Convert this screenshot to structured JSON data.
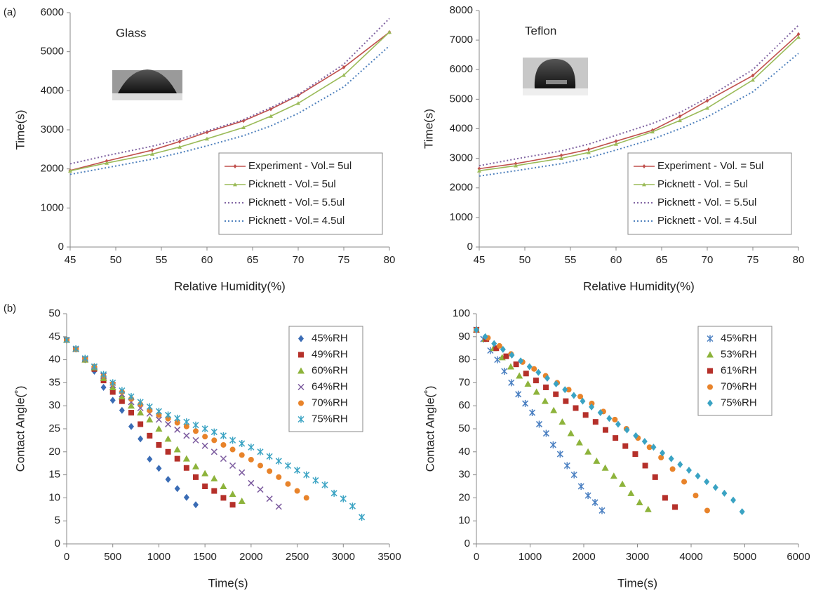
{
  "chart_data": [
    {
      "type": "line",
      "panel_label": "(a)",
      "title": "Glass",
      "x_label": "Relative Humidity(%)",
      "y_label": "Time(s)",
      "xlim": [
        45,
        80
      ],
      "xticks": [
        45,
        50,
        55,
        60,
        65,
        70,
        75,
        80
      ],
      "ylim": [
        0,
        6000
      ],
      "yticks": [
        0,
        1000,
        2000,
        3000,
        4000,
        5000,
        6000
      ],
      "legend": "lower right",
      "series": [
        {
          "name": "Experiment - Vol.= 5ul",
          "color": "#c0504d",
          "style": "solid",
          "marker": "diamond",
          "x": [
            45,
            49,
            54,
            57,
            60,
            64,
            67,
            70,
            75,
            80
          ],
          "values": [
            1960,
            2200,
            2480,
            2700,
            2940,
            3230,
            3530,
            3880,
            4600,
            5500
          ]
        },
        {
          "name": "Picknett - Vol.= 5ul",
          "color": "#9bbb59",
          "style": "solid",
          "marker": "triangle",
          "x": [
            45,
            49,
            54,
            57,
            60,
            64,
            67,
            70,
            75,
            80
          ],
          "values": [
            1950,
            2150,
            2380,
            2560,
            2770,
            3060,
            3350,
            3680,
            4400,
            5500
          ]
        },
        {
          "name": "Picknett - Vol.= 5.5ul",
          "color": "#8064a2",
          "style": "dotted",
          "marker": "none",
          "x": [
            45,
            49,
            54,
            57,
            60,
            64,
            67,
            70,
            75,
            80
          ],
          "values": [
            2130,
            2340,
            2580,
            2760,
            2970,
            3260,
            3570,
            3900,
            4680,
            5850
          ]
        },
        {
          "name": "Picknett - Vol.= 4.5ul",
          "color": "#4f81bd",
          "style": "dotted",
          "marker": "none",
          "x": [
            45,
            49,
            54,
            57,
            60,
            64,
            67,
            70,
            75,
            80
          ],
          "values": [
            1860,
            2030,
            2250,
            2410,
            2590,
            2850,
            3100,
            3420,
            4100,
            5150
          ]
        }
      ]
    },
    {
      "type": "line",
      "title": "Teflon",
      "x_label": "Relative Humidity(%)",
      "y_label": "Time(s)",
      "xlim": [
        45,
        80
      ],
      "xticks": [
        45,
        50,
        55,
        60,
        65,
        70,
        75,
        80
      ],
      "ylim": [
        0,
        8000
      ],
      "yticks": [
        0,
        1000,
        2000,
        3000,
        4000,
        5000,
        6000,
        7000,
        8000
      ],
      "legend": "lower right",
      "series": [
        {
          "name": "Experiment - Vol. = 5ul",
          "color": "#c0504d",
          "style": "solid",
          "marker": "diamond",
          "x": [
            45,
            49,
            54,
            57,
            60,
            64,
            67,
            70,
            75,
            80
          ],
          "values": [
            2650,
            2820,
            3100,
            3300,
            3580,
            3950,
            4420,
            4950,
            5800,
            7200
          ]
        },
        {
          "name": "Picknett - Vol. = 5ul",
          "color": "#9bbb59",
          "style": "solid",
          "marker": "triangle",
          "x": [
            45,
            49,
            54,
            57,
            60,
            64,
            67,
            70,
            75,
            80
          ],
          "values": [
            2580,
            2750,
            3000,
            3200,
            3480,
            3900,
            4280,
            4700,
            5650,
            7100
          ]
        },
        {
          "name": "Picknett - Vol. = 5.5ul",
          "color": "#8064a2",
          "style": "dotted",
          "marker": "none",
          "x": [
            45,
            49,
            54,
            57,
            60,
            64,
            67,
            70,
            75,
            80
          ],
          "values": [
            2750,
            2980,
            3250,
            3480,
            3780,
            4180,
            4550,
            5050,
            6000,
            7500
          ]
        },
        {
          "name": "Picknett - Vol. = 4.5ul",
          "color": "#4f81bd",
          "style": "dotted",
          "marker": "none",
          "x": [
            45,
            49,
            54,
            57,
            60,
            64,
            67,
            70,
            75,
            80
          ],
          "values": [
            2400,
            2580,
            2820,
            3020,
            3280,
            3650,
            4000,
            4400,
            5250,
            6550
          ]
        }
      ]
    },
    {
      "type": "scatter",
      "panel_label": "(b)",
      "x_label": "Time(s)",
      "y_label": "Contact Angle(˚)",
      "xlim": [
        0,
        3500
      ],
      "xticks": [
        0,
        500,
        1000,
        1500,
        2000,
        2500,
        3000,
        3500
      ],
      "ylim": [
        0,
        50
      ],
      "yticks": [
        0,
        5,
        10,
        15,
        20,
        25,
        30,
        35,
        40,
        45,
        50
      ],
      "legend": "upper right",
      "series": [
        {
          "name": "45%RH",
          "color": "#3a6cb5",
          "marker": "diamond",
          "x": [
            0,
            100,
            200,
            300,
            400,
            500,
            600,
            700,
            800,
            900,
            1000,
            1100,
            1200,
            1300,
            1400
          ],
          "values": [
            44.3,
            42.3,
            40,
            37.5,
            34,
            31.2,
            29,
            25.5,
            22.8,
            18.4,
            16.4,
            14,
            12,
            10.1,
            8.5
          ]
        },
        {
          "name": "49%RH",
          "color": "#b5302a",
          "marker": "square",
          "x": [
            0,
            100,
            200,
            300,
            400,
            500,
            600,
            700,
            800,
            900,
            1000,
            1100,
            1200,
            1300,
            1400,
            1500,
            1600,
            1700,
            1800
          ],
          "values": [
            44.3,
            42.3,
            40,
            38,
            35.5,
            33,
            31,
            28.5,
            26,
            23.5,
            21.5,
            20,
            18.5,
            16.5,
            14.5,
            12.5,
            11.5,
            10,
            8.5
          ]
        },
        {
          "name": "60%RH",
          "color": "#8db33b",
          "marker": "triangle",
          "x": [
            0,
            100,
            200,
            300,
            400,
            500,
            600,
            700,
            800,
            900,
            1000,
            1100,
            1200,
            1300,
            1400,
            1500,
            1600,
            1700,
            1800,
            1900
          ],
          "values": [
            44.3,
            42.3,
            40,
            38.3,
            36,
            34,
            32,
            30,
            28.5,
            27,
            25,
            22.8,
            20.5,
            18.5,
            16.8,
            15.3,
            14.2,
            12.5,
            10.8,
            9.3
          ]
        },
        {
          "name": "64%RH",
          "color": "#7b5a9e",
          "marker": "x",
          "x": [
            0,
            100,
            200,
            300,
            400,
            500,
            600,
            700,
            800,
            900,
            1000,
            1100,
            1200,
            1300,
            1400,
            1500,
            1600,
            1700,
            1800,
            1900,
            2000,
            2100,
            2200,
            2300
          ],
          "values": [
            44.3,
            42.3,
            40.2,
            38.5,
            36.5,
            34.5,
            32.5,
            30.8,
            29.5,
            28.3,
            27,
            26,
            24.8,
            23.5,
            22.5,
            21.3,
            20,
            18.5,
            17,
            15.5,
            13.2,
            11.8,
            9.8,
            8.1
          ]
        },
        {
          "name": "70%RH",
          "color": "#e8832a",
          "marker": "circle",
          "x": [
            0,
            100,
            200,
            300,
            400,
            500,
            600,
            700,
            800,
            900,
            1000,
            1100,
            1200,
            1300,
            1400,
            1500,
            1600,
            1700,
            1800,
            1900,
            2000,
            2100,
            2200,
            2300,
            2400,
            2500,
            2600
          ],
          "values": [
            44.3,
            42.3,
            40.2,
            38.5,
            36.5,
            34.8,
            33,
            31.5,
            30.3,
            29,
            28,
            27.2,
            26.3,
            25.5,
            24.5,
            23.3,
            22.5,
            21.5,
            20.5,
            19.3,
            18.3,
            17,
            15.8,
            14.5,
            13,
            11.5,
            10
          ]
        },
        {
          "name": "75%RH",
          "color": "#3aa3c3",
          "marker": "star",
          "x": [
            0,
            100,
            200,
            300,
            400,
            500,
            600,
            700,
            800,
            900,
            1000,
            1100,
            1200,
            1300,
            1400,
            1500,
            1600,
            1700,
            1800,
            1900,
            2000,
            2100,
            2200,
            2300,
            2400,
            2500,
            2600,
            2700,
            2800,
            2900,
            3000,
            3100,
            3200
          ],
          "values": [
            44.3,
            42.4,
            40.3,
            38.5,
            36.8,
            35,
            33.3,
            32,
            30.8,
            29.8,
            28.8,
            28,
            27.3,
            26.5,
            25.8,
            25,
            24.3,
            23.5,
            22.5,
            21.8,
            21,
            20,
            19,
            18,
            17,
            16,
            15,
            13.8,
            12.8,
            11,
            9.8,
            8.2,
            5.8
          ]
        }
      ]
    },
    {
      "type": "scatter",
      "x_label": "Time(s)",
      "y_label": "Contact Angle(˚)",
      "xlim": [
        0,
        6000
      ],
      "xticks": [
        0,
        1000,
        2000,
        3000,
        4000,
        5000,
        6000
      ],
      "ylim": [
        0,
        100
      ],
      "yticks": [
        0,
        10,
        20,
        30,
        40,
        50,
        60,
        70,
        80,
        90,
        100
      ],
      "legend": "upper right",
      "series": [
        {
          "name": "45%RH",
          "color": "#4a7fc1",
          "marker": "star",
          "x": [
            0,
            130,
            260,
            390,
            520,
            650,
            780,
            910,
            1040,
            1170,
            1300,
            1430,
            1560,
            1690,
            1820,
            1950,
            2080,
            2210,
            2340
          ],
          "values": [
            93,
            89,
            84,
            80,
            75,
            70,
            65,
            61,
            57,
            52,
            48,
            43,
            39,
            34,
            30,
            25,
            21,
            18,
            14.5
          ]
        },
        {
          "name": "53%RH",
          "color": "#8db33b",
          "marker": "triangle",
          "x": [
            0,
            160,
            320,
            480,
            640,
            800,
            960,
            1120,
            1280,
            1440,
            1600,
            1760,
            1920,
            2080,
            2240,
            2400,
            2560,
            2720,
            2880,
            3040,
            3200
          ],
          "values": [
            93,
            89,
            85,
            81,
            77,
            73,
            69.5,
            66,
            62,
            58,
            53,
            48,
            44,
            40,
            36,
            33,
            29.5,
            26,
            22,
            18,
            15
          ]
        },
        {
          "name": "61%RH",
          "color": "#b5302a",
          "marker": "square",
          "x": [
            0,
            185,
            370,
            555,
            740,
            925,
            1110,
            1295,
            1480,
            1665,
            1850,
            2035,
            2220,
            2405,
            2590,
            2775,
            2960,
            3145,
            3330,
            3515,
            3700
          ],
          "values": [
            93,
            89,
            85,
            81.5,
            78,
            74,
            71,
            68,
            65,
            62,
            59,
            56,
            53,
            49.5,
            46,
            42.5,
            39,
            34,
            29,
            20,
            16
          ]
        },
        {
          "name": "70%RH",
          "color": "#e8832a",
          "marker": "circle",
          "x": [
            0,
            215,
            430,
            645,
            860,
            1075,
            1290,
            1505,
            1720,
            1935,
            2150,
            2365,
            2580,
            2795,
            3010,
            3225,
            3440,
            3655,
            3870,
            4085,
            4300
          ],
          "values": [
            93,
            89.5,
            86,
            82.5,
            79,
            76,
            73,
            70,
            67,
            64,
            61,
            57.5,
            54,
            50,
            46,
            42,
            37.5,
            32.5,
            27,
            21,
            14.5
          ]
        },
        {
          "name": "75%RH",
          "color": "#3aa3c3",
          "marker": "diamond",
          "x": [
            0,
            165,
            330,
            495,
            660,
            825,
            990,
            1155,
            1320,
            1485,
            1650,
            1815,
            1980,
            2145,
            2310,
            2475,
            2640,
            2805,
            2970,
            3135,
            3300,
            3465,
            3630,
            3795,
            3960,
            4125,
            4290,
            4455,
            4620,
            4785,
            4950
          ],
          "values": [
            93,
            90,
            87,
            84.5,
            82,
            79.5,
            77,
            74.5,
            72,
            69.5,
            67,
            64.5,
            62,
            59.5,
            57,
            54.5,
            52,
            49.5,
            47,
            44.5,
            42,
            39.5,
            37,
            34.5,
            32,
            29.5,
            27,
            24.5,
            22,
            19,
            14
          ]
        }
      ]
    }
  ]
}
